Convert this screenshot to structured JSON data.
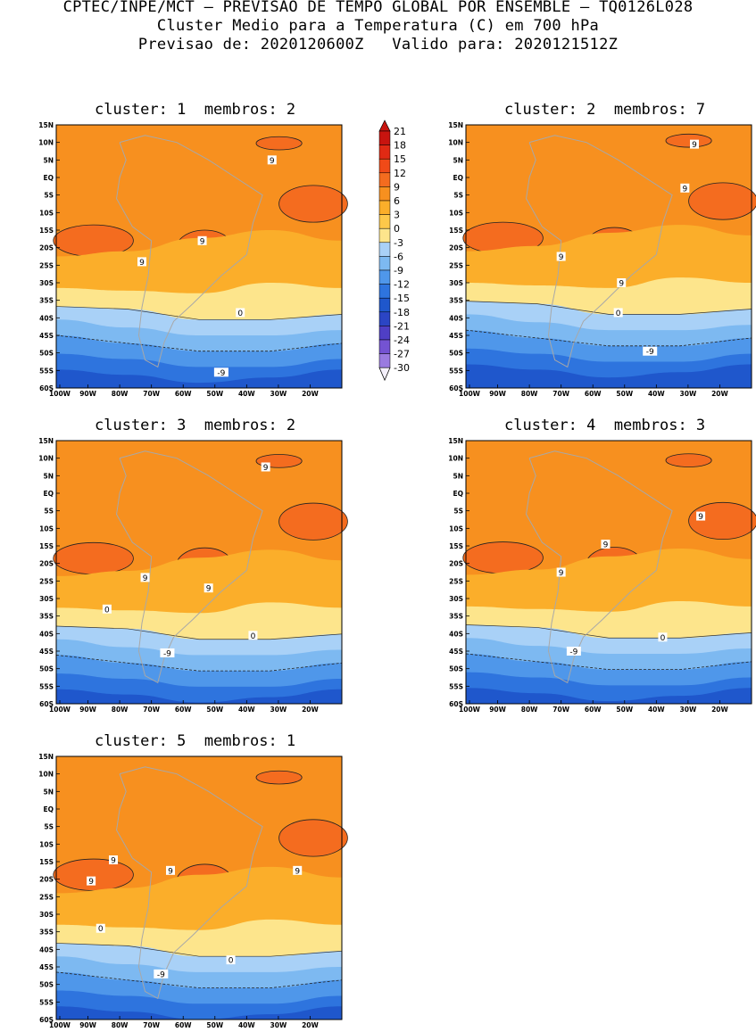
{
  "header": {
    "line1": "CPTEC/INPE/MCT – PREVISAO DE TEMPO GLOBAL POR ENSEMBLE – TQ0126L028",
    "line2": "Cluster Medio para a Temperatura (C) em 700 hPa",
    "line3": "Previsao de: 2020120600Z   Valido para: 2020121512Z"
  },
  "colorbar": {
    "levels": [
      "21",
      "18",
      "15",
      "12",
      "9",
      "6",
      "3",
      "0",
      "-3",
      "-6",
      "-9",
      "-12",
      "-15",
      "-18",
      "-21",
      "-24",
      "-27",
      "-30"
    ],
    "colors": [
      "#c8140f",
      "#e02a14",
      "#f04a18",
      "#f46c1f",
      "#f7901f",
      "#fbae2a",
      "#fdc84a",
      "#fde58c",
      "#a9d1f7",
      "#7db9f1",
      "#4f97ea",
      "#2e74de",
      "#1f57cc",
      "#2b45c4",
      "#4f3fc5",
      "#7453d2",
      "#9a7be0",
      "#c3adeb"
    ]
  },
  "axes": {
    "lat_labels": [
      "15N",
      "10N",
      "5N",
      "EQ",
      "5S",
      "10S",
      "15S",
      "20S",
      "25S",
      "30S",
      "35S",
      "40S",
      "45S",
      "50S",
      "55S",
      "60S"
    ],
    "lon_labels": [
      "100W",
      "90W",
      "80W",
      "70W",
      "60W",
      "50W",
      "40W",
      "30W",
      "20W"
    ]
  },
  "panels": [
    {
      "title": "cluster: 1  membros: 2",
      "labels": [
        {
          "text": "9",
          "lon": -32,
          "lat": 5
        },
        {
          "text": "9",
          "lon": -54,
          "lat": -18
        },
        {
          "text": "9",
          "lon": -73,
          "lat": -24
        },
        {
          "text": "0",
          "lon": -42,
          "lat": -38.5
        },
        {
          "text": "-9",
          "lon": -48,
          "lat": -55.5
        }
      ]
    },
    {
      "title": "cluster: 2  membros: 7",
      "labels": [
        {
          "text": "9",
          "lon": -28,
          "lat": 9.5
        },
        {
          "text": "9",
          "lon": -31,
          "lat": -3
        },
        {
          "text": "9",
          "lon": -70,
          "lat": -22.5
        },
        {
          "text": "9",
          "lon": -51,
          "lat": -30
        },
        {
          "text": "0",
          "lon": -52,
          "lat": -38.5
        },
        {
          "text": "-9",
          "lon": -42,
          "lat": -49.5
        }
      ]
    },
    {
      "title": "cluster: 3  membros: 2",
      "labels": [
        {
          "text": "9",
          "lon": -34,
          "lat": 7.5
        },
        {
          "text": "9",
          "lon": -72,
          "lat": -24
        },
        {
          "text": "9",
          "lon": -52,
          "lat": -27
        },
        {
          "text": "0",
          "lon": -84,
          "lat": -33
        },
        {
          "text": "0",
          "lon": -38,
          "lat": -40.5
        },
        {
          "text": "-9",
          "lon": -65,
          "lat": -45.5
        }
      ]
    },
    {
      "title": "cluster: 4  membros: 3",
      "labels": [
        {
          "text": "9",
          "lon": -26,
          "lat": -6.5
        },
        {
          "text": "9",
          "lon": -56,
          "lat": -14.5
        },
        {
          "text": "9",
          "lon": -70,
          "lat": -22.5
        },
        {
          "text": "0",
          "lon": -38,
          "lat": -41
        },
        {
          "text": "-9",
          "lon": -66,
          "lat": -45
        }
      ]
    },
    {
      "title": "cluster: 5  membros: 1",
      "labels": [
        {
          "text": "9",
          "lon": -82,
          "lat": -14.5
        },
        {
          "text": "9",
          "lon": -64,
          "lat": -17.5
        },
        {
          "text": "9",
          "lon": -24,
          "lat": -17.5
        },
        {
          "text": "9",
          "lon": -89,
          "lat": -20.5
        },
        {
          "text": "0",
          "lon": -86,
          "lat": -34
        },
        {
          "text": "0",
          "lon": -45,
          "lat": -43
        },
        {
          "text": "-9",
          "lon": -67,
          "lat": -47
        }
      ]
    }
  ]
}
